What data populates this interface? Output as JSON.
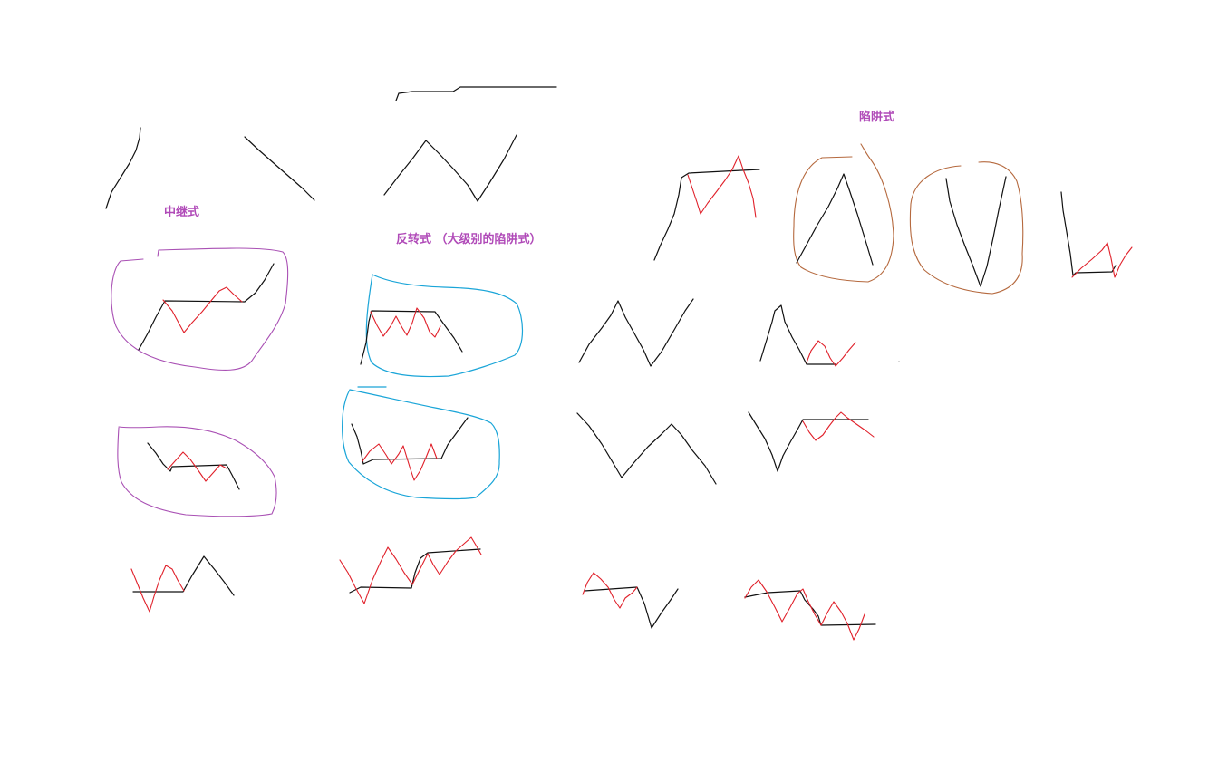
{
  "labels": {
    "continuation": "中继式",
    "reversal": "反转式 （大级别的陷阱式）",
    "trap": "陷阱式"
  },
  "colors": {
    "background": "#ffffff",
    "trend_line": "#111111",
    "sub_wave": "#e0202a",
    "label_text": "#b04ab8",
    "continuation_circle": "#a950b4",
    "reversal_circle": "#1aa5d8",
    "trap_circle": "#b5693e"
  }
}
